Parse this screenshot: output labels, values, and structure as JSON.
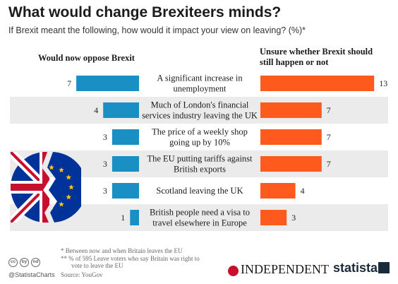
{
  "header": {
    "title": "What would change Brexiteers minds?",
    "subtitle": "If Brexit meant the following, how would it impact your view on leaving? (%)*"
  },
  "columns": {
    "left": "Would now oppose Brexit",
    "right_line1": "Unsure whether Brexit should",
    "right_line2": "still happen or not"
  },
  "chart_data": {
    "type": "bar",
    "categories": [
      [
        "A significant increase in",
        "unemployment"
      ],
      [
        "Much of London's financial",
        "services industry leaving the UK"
      ],
      [
        "The price of a weekly shop",
        "going up by 10%"
      ],
      [
        "The EU putting tariffs against",
        "British exports"
      ],
      [
        "Scotland leaving the UK"
      ],
      [
        "British people need a visa to",
        "travel elsewhere in Europe"
      ]
    ],
    "series": [
      {
        "name": "Would now oppose Brexit",
        "values": [
          7,
          4,
          3,
          3,
          3,
          1
        ],
        "color": "#1a8fc4"
      },
      {
        "name": "Unsure whether Brexit should still happen or not",
        "values": [
          13,
          7,
          7,
          7,
          4,
          3
        ],
        "color": "#fe5a1d"
      }
    ]
  },
  "footer": {
    "note1": "*   Between now and when Britain leaves the EU",
    "note2": "** % of 595 Leave voters who say Britain was right to",
    "note3": "vote to leave the EU",
    "source": "Source:  YouGov",
    "handle": "@StatistaCharts",
    "publisher": "INDEPENDENT",
    "brand": "statista",
    "cc_icons": [
      "cc",
      "by",
      "nd"
    ]
  },
  "colors": {
    "stripe": "#ebebeb",
    "blue": "#1a8fc4",
    "orange": "#fe5a1d",
    "flag_blue": "#003399",
    "flag_red": "#c8102e"
  }
}
